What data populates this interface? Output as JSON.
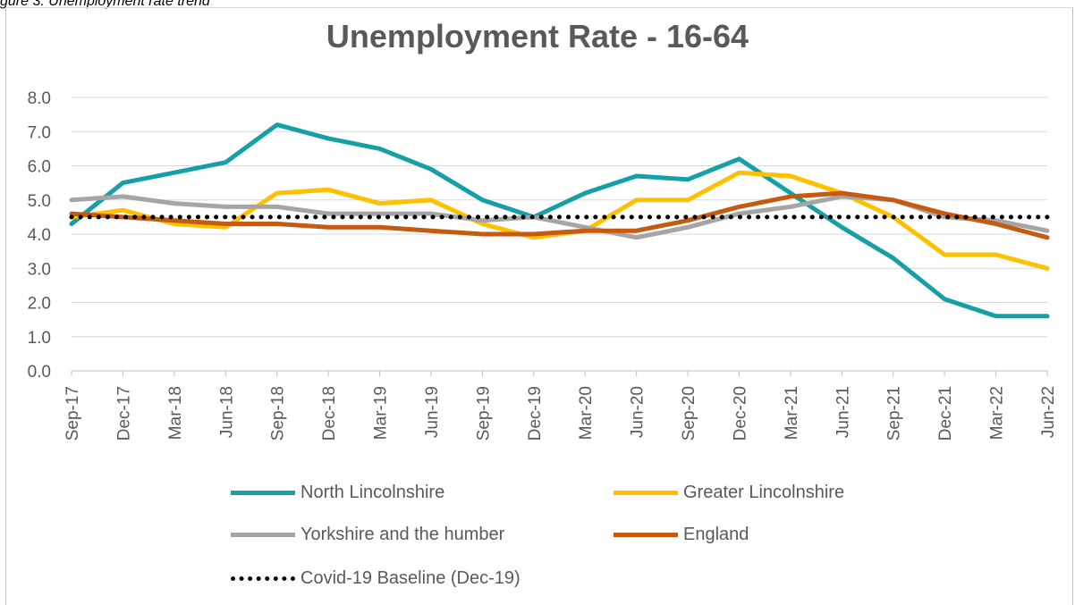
{
  "caption": "gure 3: Unemployment rate trend",
  "chart_data": {
    "type": "line",
    "title": "Unemployment Rate - 16-64",
    "xlabel": "",
    "ylabel": "",
    "ylim": [
      0,
      8
    ],
    "yticks": [
      "0.0",
      "1.0",
      "2.0",
      "3.0",
      "4.0",
      "5.0",
      "6.0",
      "7.0",
      "8.0"
    ],
    "categories": [
      "Sep-17",
      "Dec-17",
      "Mar-18",
      "Jun-18",
      "Sep-18",
      "Dec-18",
      "Mar-19",
      "Jun-19",
      "Sep-19",
      "Dec-19",
      "Mar-20",
      "Jun-20",
      "Sep-20",
      "Dec-20",
      "Mar-21",
      "Jun-21",
      "Sep-21",
      "Dec-21",
      "Mar-22",
      "Jun-22"
    ],
    "grid": true,
    "legend_position": "bottom",
    "series": [
      {
        "name": "North Lincolnshire",
        "color": "#179fa8",
        "style": "solid",
        "values": [
          4.3,
          5.5,
          5.8,
          6.1,
          7.2,
          6.8,
          6.5,
          5.9,
          5.0,
          4.5,
          5.2,
          5.7,
          5.6,
          6.2,
          5.2,
          4.2,
          3.3,
          2.1,
          1.6,
          1.6
        ]
      },
      {
        "name": "Greater Lincolnshire",
        "color": "#ffc000",
        "style": "solid",
        "values": [
          4.5,
          4.7,
          4.3,
          4.2,
          5.2,
          5.3,
          4.9,
          5.0,
          4.3,
          3.9,
          4.1,
          5.0,
          5.0,
          5.8,
          5.7,
          5.2,
          4.5,
          3.4,
          3.4,
          3.0
        ]
      },
      {
        "name": "Yorkshire and the humber",
        "color": "#a5a5a5",
        "style": "solid",
        "values": [
          5.0,
          5.1,
          4.9,
          4.8,
          4.8,
          4.6,
          4.6,
          4.6,
          4.4,
          4.5,
          4.2,
          3.9,
          4.2,
          4.6,
          4.8,
          5.1,
          5.0,
          4.5,
          4.4,
          4.1
        ]
      },
      {
        "name": "England",
        "color": "#c55a11",
        "style": "solid",
        "values": [
          4.6,
          4.5,
          4.4,
          4.3,
          4.3,
          4.2,
          4.2,
          4.1,
          4.0,
          4.0,
          4.1,
          4.1,
          4.4,
          4.8,
          5.1,
          5.2,
          5.0,
          4.6,
          4.3,
          3.9
        ]
      },
      {
        "name": "Covid-19 Baseline (Dec-19)",
        "color": "#000000",
        "style": "dotted",
        "values": [
          4.5,
          4.5,
          4.5,
          4.5,
          4.5,
          4.5,
          4.5,
          4.5,
          4.5,
          4.5,
          4.5,
          4.5,
          4.5,
          4.5,
          4.5,
          4.5,
          4.5,
          4.5,
          4.5,
          4.5
        ]
      }
    ]
  }
}
